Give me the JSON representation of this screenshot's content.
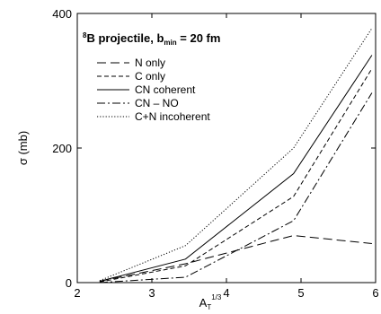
{
  "chart_data": {
    "type": "line",
    "title_parts": {
      "sup": "8",
      "main": "B projectile, b",
      "sub": "min",
      "tail": " = 20 fm"
    },
    "xlabel_parts": {
      "main": "A",
      "sub": "T",
      "sup": "1/3"
    },
    "ylabel": "σ (mb)",
    "xlim": [
      2,
      6
    ],
    "ylim": [
      0,
      400
    ],
    "xticks": [
      2,
      3,
      4,
      5,
      6
    ],
    "yticks": [
      0,
      200,
      400
    ],
    "x": [
      2.3,
      3.45,
      4.9,
      5.95
    ],
    "series": [
      {
        "name": "N only",
        "dash": "long",
        "values": [
          2,
          28,
          70,
          58
        ]
      },
      {
        "name": "C only",
        "dash": "short",
        "values": [
          1,
          25,
          128,
          318
        ]
      },
      {
        "name": "CN coherent",
        "dash": "solid",
        "values": [
          2,
          35,
          162,
          338
        ]
      },
      {
        "name": "CN – NO",
        "dash": "dashdot",
        "values": [
          0,
          8,
          92,
          282
        ]
      },
      {
        "name": "C+N incoherent",
        "dash": "dotted",
        "values": [
          3,
          55,
          200,
          378
        ]
      }
    ],
    "legend_position": "upper-left",
    "grid": false
  }
}
